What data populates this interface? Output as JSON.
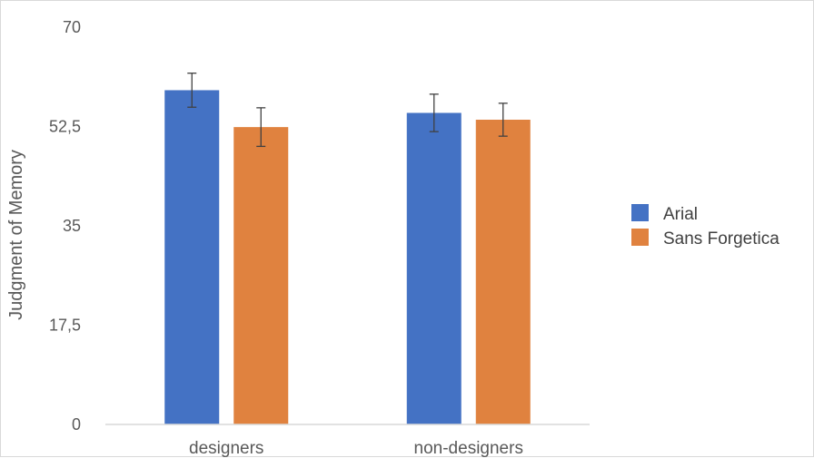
{
  "chart_data": {
    "type": "bar",
    "title": "",
    "xlabel": "",
    "ylabel": "Judgment of Memory",
    "categories": [
      "designers",
      "non-designers"
    ],
    "series": [
      {
        "name": "Arial",
        "color": "#4472c4",
        "values": [
          58.9,
          54.9
        ],
        "error": [
          3.0,
          3.3
        ]
      },
      {
        "name": "Sans Forgetica",
        "color": "#e0823f",
        "values": [
          52.4,
          53.7
        ],
        "error": [
          3.4,
          2.9
        ]
      }
    ],
    "ylim": [
      0,
      70
    ],
    "yticks": [
      "0",
      "17,5",
      "35",
      "52,5",
      "70"
    ],
    "grid": false,
    "legend": "right"
  }
}
